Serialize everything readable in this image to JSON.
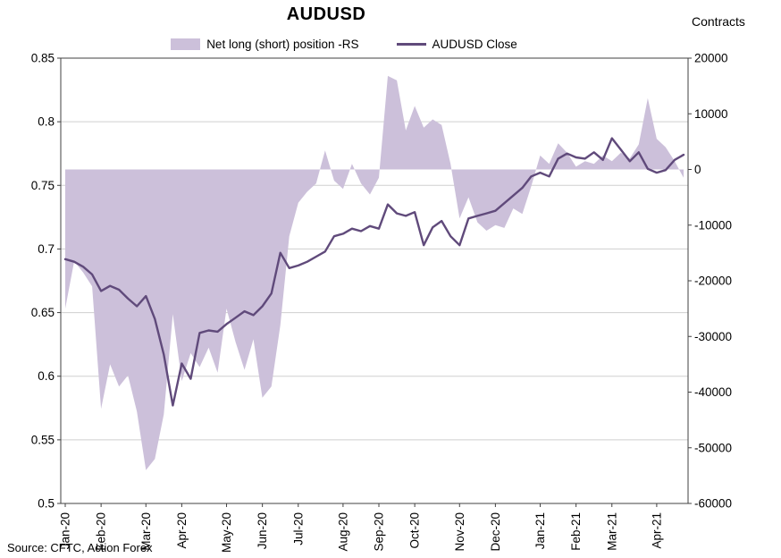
{
  "header": {
    "title": "AUDUSD",
    "right_axis_title": "Contracts"
  },
  "legend": {
    "area_label": "Net long (short) position -RS",
    "line_label": "AUDUSD Close"
  },
  "footer": {
    "source": "Source: CFTC, Action Forex"
  },
  "colors": {
    "area": "#ccc0da",
    "line": "#604a7b",
    "grid": "#cfcfcf",
    "axis": "#404040"
  },
  "chart_data": {
    "type": "area",
    "subtype": "area+line combo, weekly data",
    "title": "AUDUSD",
    "source": "Source: CFTC, Action Forex",
    "legend_position": "top",
    "grid": "horizontal",
    "x_labels": [
      "Jan-20",
      "Feb-20",
      "Mar-20",
      "Apr-20",
      "May-20",
      "Jun-20",
      "Jul-20",
      "Aug-20",
      "Sep-20",
      "Oct-20",
      "Nov-20",
      "Dec-20",
      "Jan-21",
      "Feb-21",
      "Mar-21",
      "Apr-21"
    ],
    "left_axis": {
      "min": 0.5,
      "max": 0.85,
      "tick_step": 0.05,
      "ticks": [
        "0.85",
        "0.8",
        "0.75",
        "0.7",
        "0.65",
        "0.6",
        "0.55",
        "0.5"
      ],
      "grid_values": [
        0.8,
        0.75,
        0.7,
        0.65,
        0.6,
        0.55
      ]
    },
    "right_axis": {
      "label": "Contracts",
      "min": -60000,
      "max": 20000,
      "tick_step": 10000,
      "ticks": [
        "20000",
        "10000",
        "0",
        "-10000",
        "-20000",
        "-30000",
        "-40000",
        "-50000",
        "-60000"
      ]
    },
    "series": [
      {
        "name": "Net long (short) position -RS",
        "type": "area",
        "axis": "right",
        "color": "#ccc0da",
        "values": [
          -25000,
          -16500,
          -18500,
          -21000,
          -43000,
          -35000,
          -39000,
          -37000,
          -43500,
          -54000,
          -52000,
          -44000,
          -26000,
          -38000,
          -33000,
          -35500,
          -32000,
          -36500,
          -25000,
          -31000,
          -36000,
          -30500,
          -41000,
          -39000,
          -28000,
          -12000,
          -6000,
          -4000,
          -2500,
          3400,
          -2000,
          -3500,
          1000,
          -2500,
          -4500,
          -1500,
          16800,
          16000,
          7000,
          11400,
          7500,
          9000,
          8000,
          1000,
          -8800,
          -5000,
          -9500,
          -11000,
          -10000,
          -10500,
          -7000,
          -8000,
          -3000,
          2500,
          1000,
          4700,
          3000,
          500,
          1500,
          1000,
          2500,
          1500,
          3000,
          2000,
          4500,
          12800,
          5500,
          4000,
          1500,
          -1500
        ]
      },
      {
        "name": "AUDUSD Close",
        "type": "line",
        "axis": "left",
        "color": "#604a7b",
        "values": [
          0.692,
          0.69,
          0.686,
          0.68,
          0.667,
          0.671,
          0.668,
          0.661,
          0.655,
          0.663,
          0.645,
          0.617,
          0.577,
          0.61,
          0.598,
          0.634,
          0.636,
          0.635,
          0.641,
          0.646,
          0.651,
          0.648,
          0.655,
          0.665,
          0.697,
          0.685,
          0.687,
          0.69,
          0.694,
          0.698,
          0.71,
          0.712,
          0.716,
          0.714,
          0.718,
          0.716,
          0.735,
          0.728,
          0.726,
          0.729,
          0.703,
          0.717,
          0.722,
          0.71,
          0.703,
          0.724,
          0.726,
          0.728,
          0.73,
          0.736,
          0.742,
          0.748,
          0.757,
          0.76,
          0.757,
          0.771,
          0.775,
          0.772,
          0.771,
          0.776,
          0.77,
          0.787,
          0.778,
          0.769,
          0.776,
          0.763,
          0.76,
          0.762,
          0.77,
          0.774
        ]
      }
    ]
  }
}
